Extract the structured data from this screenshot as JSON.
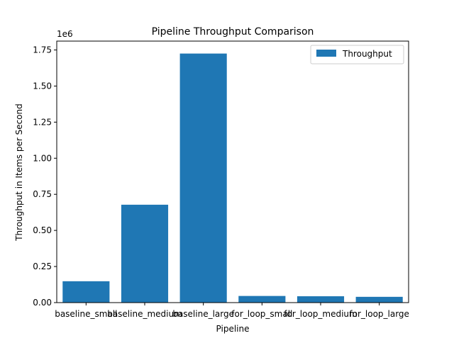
{
  "chart_data": {
    "type": "bar",
    "title": "Pipeline Throughput Comparison",
    "xlabel": "Pipeline",
    "ylabel": "Throughput in Items per Second",
    "y_offset_label": "1e6",
    "categories": [
      "baseline_small",
      "baseline_medium",
      "baseline_large",
      "for_loop_small",
      "for_loop_medium",
      "for_loop_large"
    ],
    "series": [
      {
        "name": "Throughput",
        "values": [
          148000,
          678000,
          1725000,
          46000,
          44000,
          40000
        ],
        "color": "#1f77b4"
      }
    ],
    "ylim": [
      0,
      1811250
    ],
    "yticks": [
      0,
      250000,
      500000,
      750000,
      1000000,
      1250000,
      1500000,
      1750000
    ],
    "ytick_labels": [
      "0.00",
      "0.25",
      "0.50",
      "0.75",
      "1.00",
      "1.25",
      "1.50",
      "1.75"
    ],
    "grid": false,
    "legend": {
      "placement": "top-right",
      "entries": [
        "Throughput"
      ]
    }
  }
}
